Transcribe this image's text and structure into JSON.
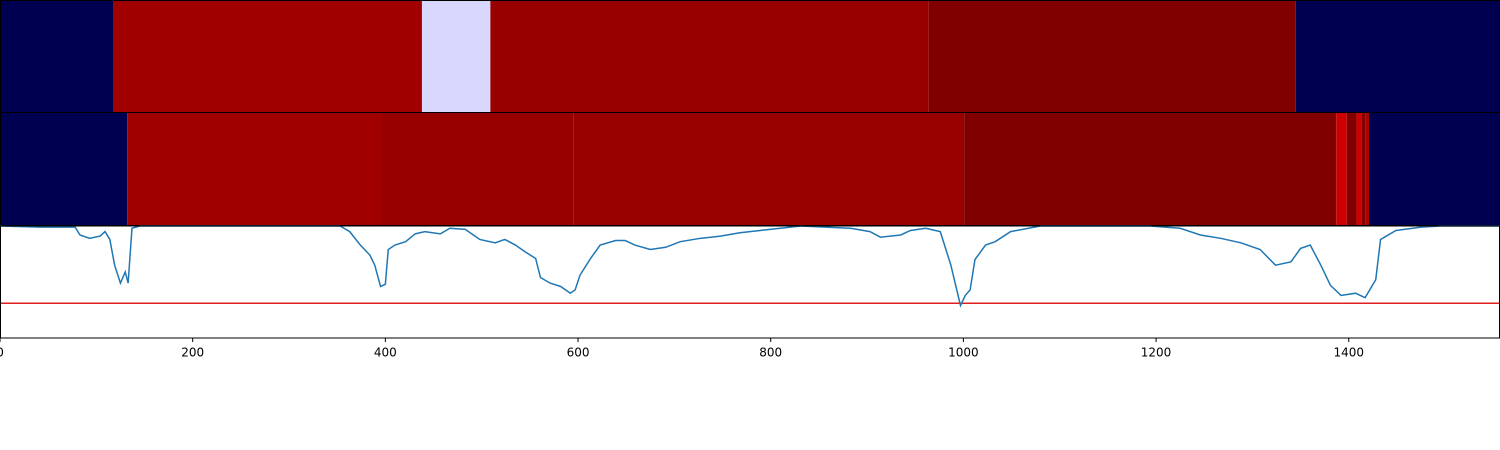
{
  "chart_data": {
    "type": "segmentation",
    "xlim": [
      0,
      1557
    ],
    "xticks": [
      0,
      200,
      400,
      600,
      800,
      1000,
      1200,
      1400
    ],
    "tracks": [
      {
        "segments": [
          {
            "start": 0,
            "end": 118,
            "color": "#000050"
          },
          {
            "start": 118,
            "end": 438,
            "color": "#a00000"
          },
          {
            "start": 438,
            "end": 509,
            "color": "#d8d8ff"
          },
          {
            "start": 509,
            "end": 964,
            "color": "#980000"
          },
          {
            "start": 964,
            "end": 1345,
            "color": "#800000"
          },
          {
            "start": 1345,
            "end": 1557,
            "color": "#000050"
          }
        ]
      },
      {
        "segments": [
          {
            "start": 0,
            "end": 132,
            "color": "#000050"
          },
          {
            "start": 132,
            "end": 396,
            "color": "#a00000"
          },
          {
            "start": 396,
            "end": 595,
            "color": "#980000"
          },
          {
            "start": 595,
            "end": 1001,
            "color": "#990000"
          },
          {
            "start": 1001,
            "end": 1387,
            "color": "#800000"
          },
          {
            "start": 1387,
            "end": 1398,
            "color": "#cc0000"
          },
          {
            "start": 1398,
            "end": 1408,
            "color": "#800000"
          },
          {
            "start": 1408,
            "end": 1413,
            "color": "#cc0000"
          },
          {
            "start": 1413,
            "end": 1417,
            "color": "#800000"
          },
          {
            "start": 1417,
            "end": 1421,
            "color": "#aa0000"
          },
          {
            "start": 1421,
            "end": 1557,
            "color": "#000050"
          }
        ]
      }
    ],
    "ylim": [
      0,
      1
    ],
    "line": {
      "color": "#1f77b4",
      "x": [
        0,
        42,
        78,
        83,
        93,
        104,
        109,
        114,
        119,
        125,
        130,
        133,
        137,
        145,
        208,
        312,
        353,
        363,
        374,
        384,
        389,
        395,
        400,
        403,
        410,
        421,
        431,
        441,
        457,
        467,
        483,
        498,
        514,
        524,
        535,
        545,
        556,
        561,
        571,
        582,
        592,
        597,
        602,
        613,
        623,
        639,
        649,
        659,
        675,
        691,
        706,
        727,
        748,
        768,
        789,
        810,
        831,
        883,
        903,
        914,
        935,
        945,
        961,
        976,
        987,
        992,
        997,
        1002,
        1007,
        1012,
        1023,
        1033,
        1049,
        1080,
        1194,
        1225,
        1246,
        1267,
        1288,
        1308,
        1324,
        1340,
        1350,
        1360,
        1371,
        1381,
        1392,
        1407,
        1417,
        1428,
        1433,
        1449,
        1475,
        1495,
        1557
      ],
      "values": [
        1.0,
        0.99,
        0.99,
        0.92,
        0.89,
        0.91,
        0.95,
        0.88,
        0.65,
        0.49,
        0.59,
        0.49,
        0.98,
        1.0,
        1.0,
        1.0,
        1.0,
        0.95,
        0.83,
        0.74,
        0.65,
        0.46,
        0.48,
        0.79,
        0.83,
        0.86,
        0.93,
        0.95,
        0.93,
        0.98,
        0.97,
        0.88,
        0.85,
        0.88,
        0.83,
        0.77,
        0.71,
        0.54,
        0.49,
        0.46,
        0.4,
        0.43,
        0.56,
        0.71,
        0.83,
        0.87,
        0.87,
        0.83,
        0.79,
        0.81,
        0.86,
        0.89,
        0.91,
        0.94,
        0.96,
        0.98,
        1.0,
        0.98,
        0.95,
        0.9,
        0.92,
        0.96,
        0.98,
        0.95,
        0.65,
        0.47,
        0.29,
        0.38,
        0.43,
        0.7,
        0.83,
        0.86,
        0.95,
        1.0,
        1.0,
        0.98,
        0.92,
        0.89,
        0.85,
        0.79,
        0.65,
        0.68,
        0.8,
        0.83,
        0.65,
        0.47,
        0.38,
        0.4,
        0.36,
        0.52,
        0.88,
        0.96,
        0.99,
        1.0,
        1.0
      ]
    },
    "threshold": {
      "value": 0.31,
      "color": "#e02020"
    }
  }
}
